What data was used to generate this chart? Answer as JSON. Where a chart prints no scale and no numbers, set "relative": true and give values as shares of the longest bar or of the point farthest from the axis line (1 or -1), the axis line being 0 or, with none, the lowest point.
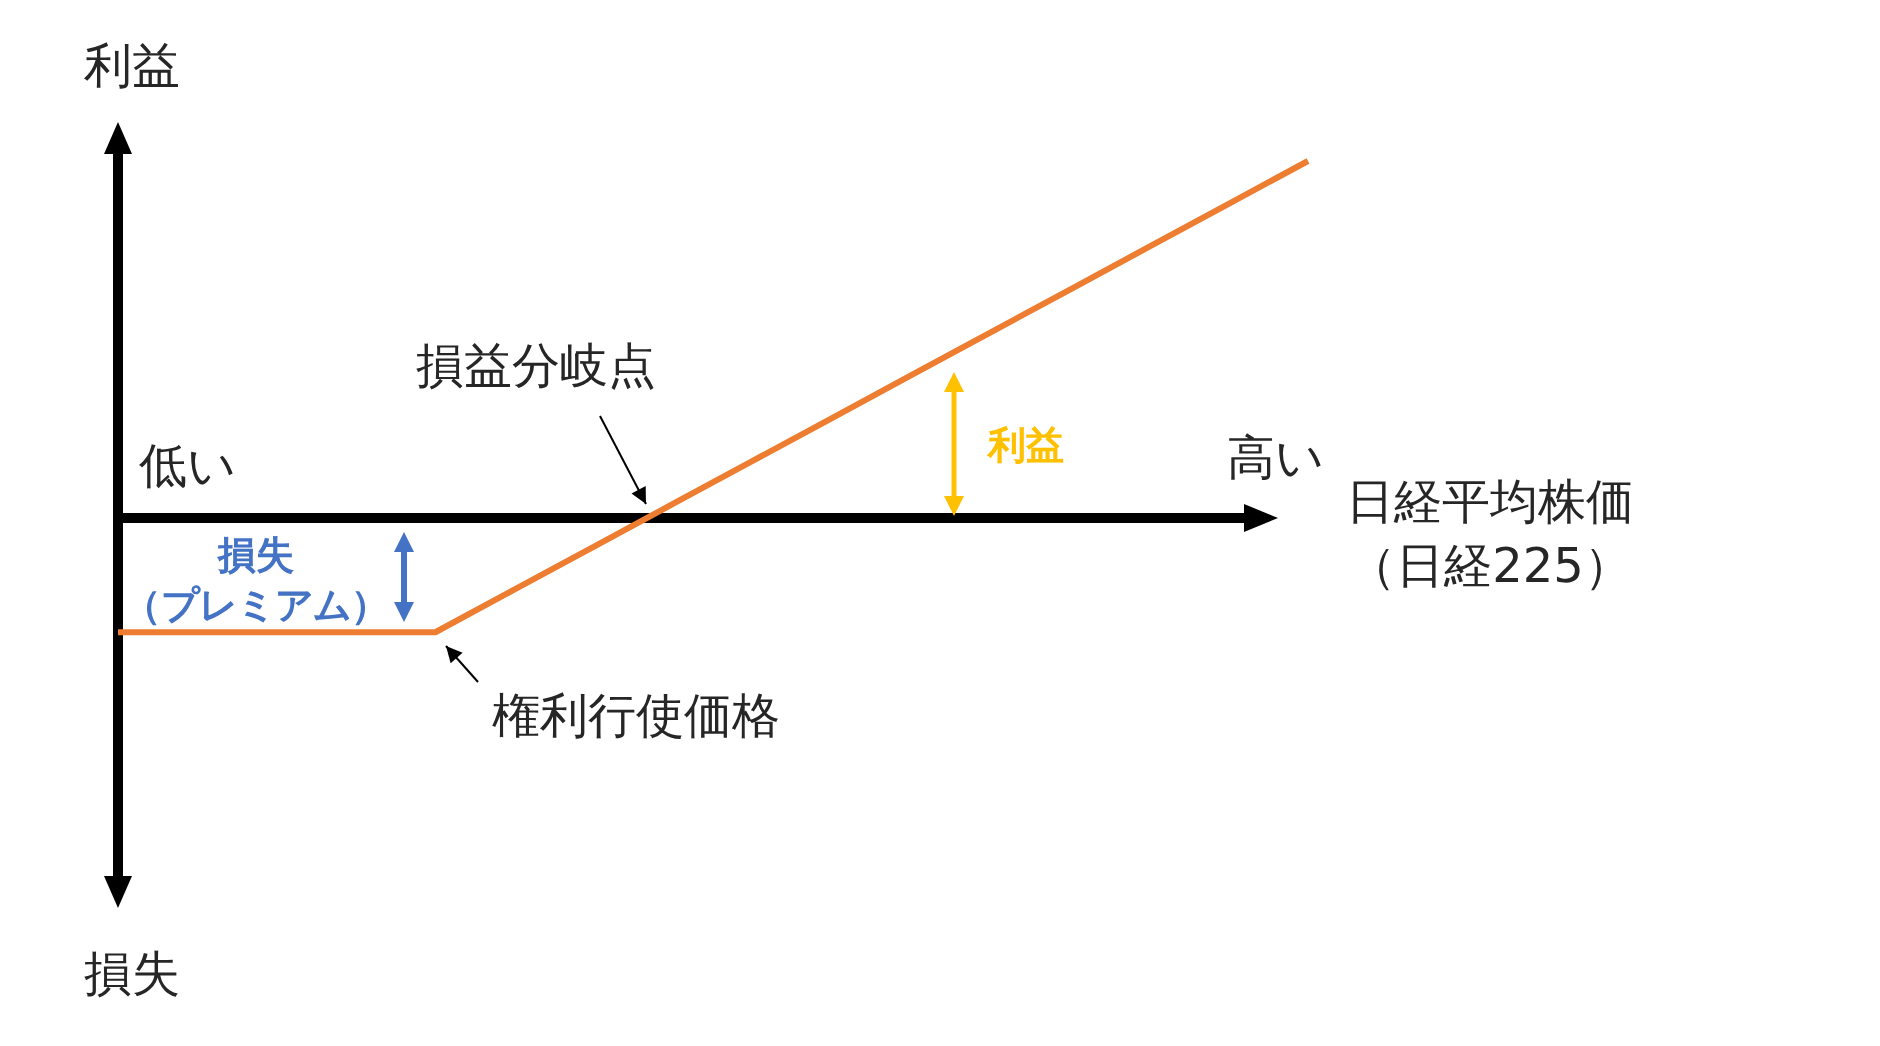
{
  "chart_data": {
    "type": "line",
    "relative": true,
    "xlabel": "日経平均株価（日経225）",
    "ylabel": "利益",
    "categories": [
      null,
      null,
      null,
      null,
      null,
      null,
      null,
      null,
      null,
      null,
      null,
      null,
      null,
      null,
      null,
      null
    ],
    "series": [
      {
        "color": "#ed7d31",
        "values": [
          -0.32,
          -0.32,
          -0.32,
          -0.32,
          -0.32,
          -0.2,
          -0.08,
          0.04,
          0.16,
          0.28,
          0.4,
          0.52,
          0.64,
          0.76,
          0.88,
          1.0
        ]
      }
    ],
    "annotations": [
      "損失",
      "低い",
      "高い",
      "損益分岐点",
      "権利行使価格",
      "利益",
      "損失（プレミアム）"
    ]
  }
}
